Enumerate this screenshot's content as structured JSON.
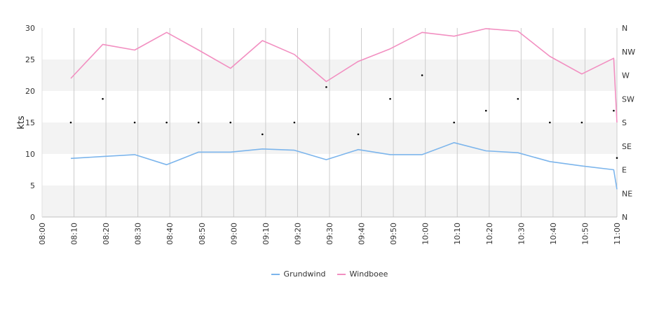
{
  "chart_data": {
    "type": "line",
    "ylabel": "kts",
    "ylim": [
      0,
      30
    ],
    "yticks": [
      "0",
      "5",
      "10",
      "15",
      "20",
      "25",
      "30"
    ],
    "direction_ticks": [
      "N",
      "NE",
      "E",
      "SE",
      "S",
      "SW",
      "W",
      "NW",
      "N"
    ],
    "x_start": "08:00",
    "x_end": "11:00",
    "xticks": [
      "08:00",
      "08:10",
      "08:20",
      "08:30",
      "08:40",
      "08:50",
      "09:00",
      "09:10",
      "09:20",
      "09:30",
      "09:40",
      "09:50",
      "10:00",
      "10:10",
      "10:20",
      "10:30",
      "10:40",
      "10:50",
      "11:00"
    ],
    "x": [
      "08:09",
      "08:19",
      "08:29",
      "08:39",
      "08:49",
      "08:59",
      "09:09",
      "09:19",
      "09:29",
      "09:39",
      "09:49",
      "09:59",
      "10:09",
      "10:19",
      "10:29",
      "10:39",
      "10:49",
      "10:59",
      "11:00"
    ],
    "series": [
      {
        "name": "Grundwind",
        "color": "#7cb5ec",
        "values": [
          9.3,
          9.6,
          9.9,
          8.3,
          10.3,
          10.3,
          10.8,
          10.6,
          9.1,
          10.7,
          9.9,
          9.9,
          11.8,
          10.5,
          10.2,
          8.8,
          8.1,
          7.5,
          4.4
        ]
      },
      {
        "name": "Windboee",
        "color": "#f28fc1",
        "values": [
          22.0,
          27.4,
          26.5,
          29.3,
          26.5,
          23.6,
          28.0,
          25.8,
          21.5,
          24.7,
          26.7,
          29.3,
          28.7,
          29.9,
          29.5,
          25.5,
          22.7,
          25.2,
          15.0
        ]
      }
    ],
    "direction_deg": [
      180,
      225,
      180,
      180,
      180,
      180,
      157.5,
      180,
      247.5,
      157.5,
      225,
      270,
      180,
      202.5,
      225,
      180,
      180,
      202.5,
      112.5
    ],
    "bands": [
      [
        0,
        5
      ],
      [
        10,
        15
      ],
      [
        20,
        25
      ]
    ],
    "band_color": "#f3f3f3",
    "grid": true,
    "legend_position": "bottom"
  }
}
